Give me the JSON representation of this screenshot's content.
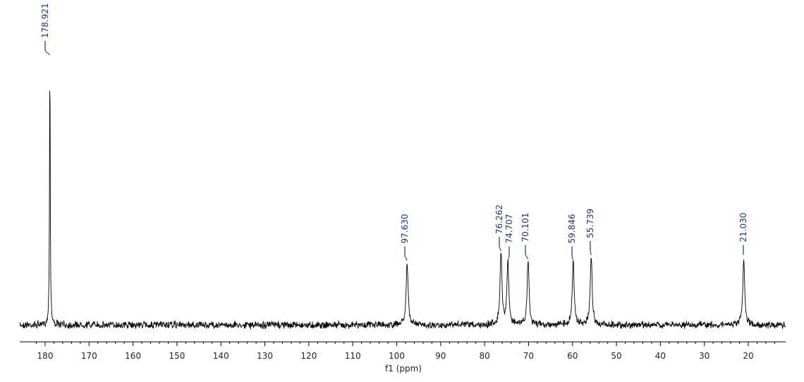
{
  "chart_data": {
    "type": "line",
    "title": "",
    "xlabel": "f1 (ppm)",
    "ylabel": "",
    "xlim": [
      184,
      12
    ],
    "x_reversed": true,
    "x_ticks": [
      "180",
      "170",
      "160",
      "150",
      "140",
      "130",
      "120",
      "110",
      "100",
      "90",
      "80",
      "70",
      "60",
      "50",
      "40",
      "30",
      "20"
    ],
    "grid": false,
    "legend": "none",
    "line_color": "#000000",
    "peak_label_color": "#1f2f8a",
    "peaks": [
      {
        "ppm": 178.921,
        "label": "178.921",
        "height": 1.0
      },
      {
        "ppm": 97.63,
        "label": "97.630",
        "height": 0.235
      },
      {
        "ppm": 76.262,
        "label": "76.262",
        "height": 0.27
      },
      {
        "ppm": 74.707,
        "label": "74.707",
        "height": 0.235
      },
      {
        "ppm": 70.101,
        "label": "70.101",
        "height": 0.24
      },
      {
        "ppm": 59.846,
        "label": "59.846",
        "height": 0.235
      },
      {
        "ppm": 55.739,
        "label": "55.739",
        "height": 0.255
      },
      {
        "ppm": 21.03,
        "label": "21.030",
        "height": 0.24
      }
    ]
  }
}
